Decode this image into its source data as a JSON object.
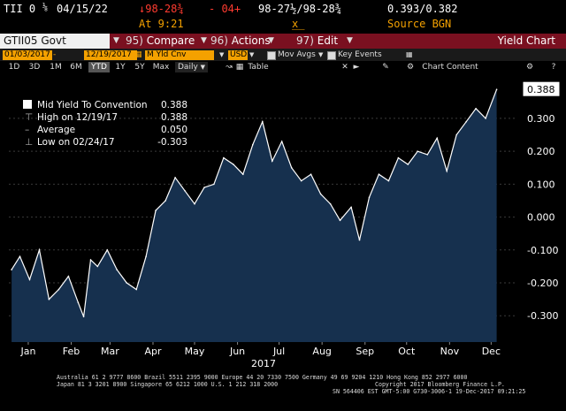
{
  "quote_row": {
    "security": "TII 0",
    "coupon_frac": "⅛",
    "maturity": "04/15/22",
    "change_price": "↓98-28¾",
    "change_ticks": "- 04+",
    "bid_ask": "98-27½/98-28¾",
    "yields": "0.393/0.382",
    "time": "At 9:21",
    "size": "x",
    "source": "Source BGN"
  },
  "command_bar": {
    "security_field": "GTII05 Govt",
    "compare_num": "95)",
    "compare_label": "Compare",
    "actions_num": "96)",
    "actions_label": "Actions",
    "edit_num": "97)",
    "edit_label": "Edit",
    "window_title": "Yield Chart"
  },
  "settings_bar": {
    "start_date": "01/03/2017",
    "end_date": "12/19/2017",
    "field": "M Yld Cnv",
    "currency": "USD",
    "mov_avgs": "Mov Avgs",
    "key_events": "Key Events"
  },
  "range_bar": {
    "ranges": [
      "1D",
      "3D",
      "1M",
      "6M",
      "YTD",
      "1Y",
      "5Y",
      "Max"
    ],
    "selected": "YTD",
    "frequency": "Daily",
    "view": "Table",
    "chart_content": "Chart Content"
  },
  "legend": {
    "series_name": "Mid Yield To Convention",
    "series_value": "0.388",
    "high_label": "High on 12/19/17",
    "high_value": "0.388",
    "avg_label": "Average",
    "avg_value": "0.050",
    "low_label": "Low on 02/24/17",
    "low_value": "-0.303"
  },
  "footer": {
    "line1": "Australia 61 2 9777 8600 Brazil 5511 2395 9000 Europe 44 20 7330 7500 Germany 49 69 9204 1210 Hong Kong 852 2977 6000",
    "line2_left": "Japan 81 3 3201 8900         Singapore 65 6212 1000          U.S. 1 212 318 2000",
    "line2_right": "Copyright 2017 Bloomberg Finance L.P.",
    "line3": "SN 564406 EST  GMT-5:00 G730-3006-1 19-Dec-2017 09:21:25"
  },
  "colors": {
    "line": "#ffffff",
    "area": "#16304e",
    "amber": "#f4a100",
    "command_bar": "#7a1020"
  },
  "chart_data": {
    "type": "area",
    "title": "",
    "xlabel": "2017",
    "ylabel": "",
    "ylim": [
      -0.38,
      0.41
    ],
    "yticks": [
      -0.3,
      -0.2,
      -0.1,
      0.0,
      0.1,
      0.2,
      0.3
    ],
    "ytick_labels": [
      "-0.300",
      "-0.200",
      "-0.100",
      "0.000",
      "0.100",
      "0.200",
      "0.300"
    ],
    "month_labels": [
      "Jan",
      "Feb",
      "Mar",
      "Apr",
      "May",
      "Jun",
      "Jul",
      "Aug",
      "Sep",
      "Oct",
      "Nov",
      "Dec"
    ],
    "year_label": "2017",
    "last_value_label": "0.388",
    "series": [
      {
        "name": "Mid Yield To Convention",
        "x": [
          "2017-01-03",
          "2017-01-09",
          "2017-01-16",
          "2017-01-23",
          "2017-01-30",
          "2017-02-06",
          "2017-02-13",
          "2017-02-20",
          "2017-02-24",
          "2017-03-01",
          "2017-03-06",
          "2017-03-13",
          "2017-03-20",
          "2017-03-27",
          "2017-04-03",
          "2017-04-10",
          "2017-04-17",
          "2017-04-24",
          "2017-05-01",
          "2017-05-08",
          "2017-05-15",
          "2017-05-22",
          "2017-05-29",
          "2017-06-05",
          "2017-06-12",
          "2017-06-19",
          "2017-06-26",
          "2017-07-03",
          "2017-07-10",
          "2017-07-17",
          "2017-07-24",
          "2017-07-31",
          "2017-08-07",
          "2017-08-14",
          "2017-08-21",
          "2017-08-28",
          "2017-09-05",
          "2017-09-11",
          "2017-09-18",
          "2017-09-25",
          "2017-10-02",
          "2017-10-09",
          "2017-10-16",
          "2017-10-23",
          "2017-10-30",
          "2017-11-06",
          "2017-11-13",
          "2017-11-20",
          "2017-11-27",
          "2017-12-04",
          "2017-12-11",
          "2017-12-19"
        ],
        "y": [
          -0.16,
          -0.12,
          -0.19,
          -0.1,
          -0.25,
          -0.22,
          -0.18,
          -0.26,
          -0.303,
          -0.13,
          -0.15,
          -0.1,
          -0.16,
          -0.2,
          -0.22,
          -0.12,
          0.02,
          0.05,
          0.12,
          0.08,
          0.04,
          0.09,
          0.1,
          0.18,
          0.16,
          0.13,
          0.22,
          0.29,
          0.17,
          0.23,
          0.15,
          0.11,
          0.13,
          0.07,
          0.04,
          -0.01,
          0.03,
          -0.07,
          0.06,
          0.13,
          0.11,
          0.18,
          0.16,
          0.2,
          0.19,
          0.24,
          0.14,
          0.25,
          0.29,
          0.33,
          0.3,
          0.388
        ]
      }
    ]
  }
}
